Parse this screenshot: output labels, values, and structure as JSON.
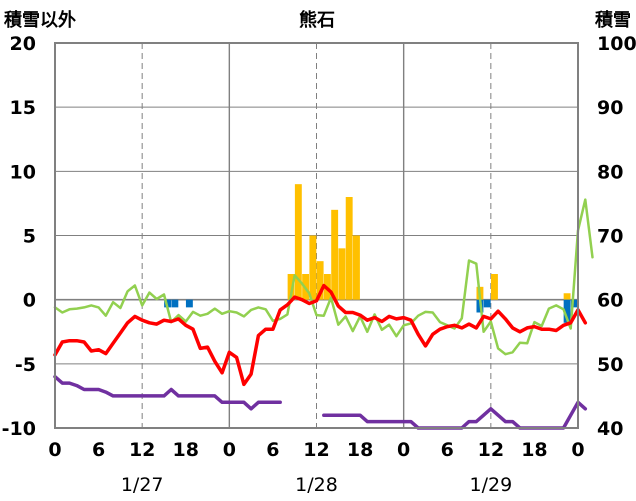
{
  "chart_data": {
    "type": "line",
    "title": "熊石",
    "left_axis_title": "積雪以外",
    "right_axis_title": "積雪",
    "y_left": {
      "min": -10,
      "max": 20,
      "ticks": [
        20,
        15,
        10,
        5,
        0,
        -5,
        -10
      ]
    },
    "y_right": {
      "min": 40,
      "max": 100,
      "ticks": [
        100,
        90,
        80,
        70,
        60,
        50,
        40
      ]
    },
    "x": {
      "min": 0,
      "max": 72,
      "tick_labels": [
        "0",
        "6",
        "12",
        "18",
        "0",
        "6",
        "12",
        "18",
        "0",
        "6",
        "12",
        "18",
        "0"
      ]
    },
    "date_labels": [
      "1/27",
      "1/28",
      "1/29"
    ],
    "grid": "dashed vertical at hours 12, 36, 60; solid vertical at day boundaries 24, 48",
    "colors": {
      "temperature": "#ff0000",
      "green_series": "#92d050",
      "purple_series": "#7030a0",
      "precip_bars": "#ffc000",
      "blue_bars": "#0070c0",
      "frame": "#808080"
    },
    "series_red": [
      -4.3,
      -3.3,
      -3.2,
      -3.2,
      -3.3,
      -4.0,
      -3.9,
      -4.2,
      -3.4,
      -2.6,
      -1.8,
      -1.3,
      -1.6,
      -1.8,
      -1.9,
      -1.6,
      -1.7,
      -1.5,
      -2.0,
      -2.3,
      -3.8,
      -3.7,
      -4.8,
      -5.7,
      -4.1,
      -4.5,
      -6.6,
      -5.8,
      -2.8,
      -2.3,
      -2.3,
      -0.8,
      -0.4,
      0.2,
      0.0,
      -0.3,
      -0.1,
      1.1,
      0.6,
      -0.5,
      -1.0,
      -1.0,
      -1.2,
      -1.6,
      -1.4,
      -1.7,
      -1.3,
      -1.5,
      -1.4,
      -1.6,
      -2.7,
      -3.6,
      -2.7,
      -2.3,
      -2.1,
      -2.0,
      -2.2,
      -1.9,
      -2.2,
      -1.3,
      -1.5,
      -0.9,
      -1.5,
      -2.2,
      -2.5,
      -2.2,
      -2.1,
      -2.3,
      -2.3,
      -2.4,
      -2.0,
      -1.8,
      -0.8,
      -1.8
    ],
    "series_green_snow": [
      58.8,
      58.0,
      58.5,
      58.6,
      58.8,
      59.1,
      58.8,
      57.5,
      59.6,
      58.7,
      61.3,
      62.2,
      59.1,
      61.1,
      60.1,
      60.8,
      56.5,
      57.6,
      56.6,
      58.1,
      57.5,
      57.8,
      58.6,
      57.8,
      58.2,
      58.0,
      57.4,
      58.4,
      58.8,
      58.5,
      56.7,
      57.0,
      57.7,
      63.8,
      62.5,
      61.0,
      57.6,
      57.5,
      60.3,
      56.1,
      57.4,
      55.1,
      57.4,
      55.0,
      57.7,
      55.3,
      56.1,
      54.3,
      56.0,
      56.3,
      57.5,
      58.1,
      58.0,
      56.5,
      56.0,
      55.5,
      57.1,
      66.1,
      65.6,
      55.0,
      56.6,
      52.4,
      51.5,
      51.8,
      53.3,
      53.2,
      56.5,
      55.9,
      58.6,
      59.1,
      58.5,
      55.5,
      70.8,
      75.6,
      66.6
    ],
    "series_purple": [
      -6.0,
      -6.5,
      -6.5,
      -6.7,
      -7.0,
      -7.0,
      -7.0,
      -7.2,
      -7.5,
      -7.5,
      -7.5,
      -7.5,
      -7.5,
      -7.5,
      -7.5,
      -7.5,
      -7.0,
      -7.5,
      -7.5,
      -7.5,
      -7.5,
      -7.5,
      -7.5,
      -8.0,
      -8.0,
      -8.0,
      -8.0,
      -8.5,
      -8.0,
      -8.0,
      -8.0,
      -8.0,
      null,
      null,
      null,
      null,
      null,
      -9.0,
      -9.0,
      -9.0,
      -9.0,
      -9.0,
      -9.0,
      -9.5,
      -9.5,
      -9.5,
      -9.5,
      -9.5,
      -9.5,
      -9.5,
      -10.0,
      -10.0,
      -10.0,
      -10.0,
      -10.0,
      -10.0,
      -10.0,
      -9.5,
      -9.5,
      -9.0,
      -8.5,
      -9.0,
      -9.5,
      -9.5,
      -10.0,
      -10.0,
      -10.0,
      -10.0,
      -10.0,
      -10.0,
      -10.0,
      -9.0,
      -8.0,
      -8.5
    ],
    "bars_yellow": [
      {
        "x": 32.5,
        "value": 2.0
      },
      {
        "x": 33.5,
        "value": 9.0
      },
      {
        "x": 34.5,
        "value": 2.0
      },
      {
        "x": 35.5,
        "value": 5.0
      },
      {
        "x": 36.5,
        "value": 3.0
      },
      {
        "x": 37.5,
        "value": 2.0
      },
      {
        "x": 38.5,
        "value": 7.0
      },
      {
        "x": 39.5,
        "value": 4.0
      },
      {
        "x": 40.5,
        "value": 8.0
      },
      {
        "x": 41.5,
        "value": 5.0
      },
      {
        "x": 58.5,
        "value": 1.0
      },
      {
        "x": 60.5,
        "value": 2.0
      },
      {
        "x": 70.5,
        "value": 0.5
      }
    ],
    "bars_blue": [
      {
        "x": 15.5,
        "value": -0.6
      },
      {
        "x": 16.5,
        "value": -0.6
      },
      {
        "x": 18.5,
        "value": -0.6
      },
      {
        "x": 58.5,
        "value": -1.0
      },
      {
        "x": 59.5,
        "value": -0.6
      },
      {
        "x": 70.5,
        "value": -1.8
      },
      {
        "x": 71.5,
        "value": -0.6
      }
    ]
  }
}
